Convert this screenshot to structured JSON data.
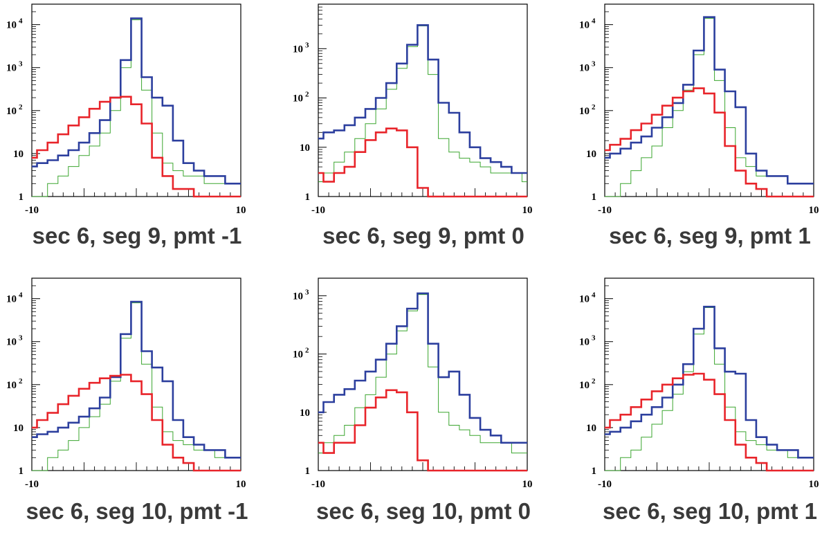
{
  "figure": {
    "x_tick_labels": [
      "-10",
      "10"
    ],
    "y_tick_labels": [
      {
        "base": "1",
        "exp": ""
      },
      {
        "base": "10",
        "exp": ""
      },
      {
        "base": "10",
        "exp": "2"
      },
      {
        "base": "10",
        "exp": "3"
      },
      {
        "base": "10",
        "exp": "4"
      }
    ],
    "colors": {
      "red": "#e8242a",
      "blue": "#2c3f9e",
      "green": "#3aa52e",
      "axis": "#000000"
    }
  },
  "chart_data": [
    {
      "type": "line",
      "title": "sec 6, seg 9, pmt -1",
      "x": [
        -10,
        -9,
        -8,
        -7,
        -6,
        -5,
        -4,
        -3,
        -2,
        -1,
        0,
        1,
        2,
        3,
        4,
        5,
        6,
        7,
        8,
        9,
        10
      ],
      "xlim": [
        -10,
        10
      ],
      "ylim": [
        1,
        30000
      ],
      "yscale": "log",
      "series": [
        {
          "color": "red",
          "values": [
            8,
            12,
            18,
            28,
            45,
            70,
            110,
            160,
            200,
            210,
            140,
            50,
            8,
            3,
            1.5,
            1.5,
            1,
            1,
            1,
            1,
            1
          ]
        },
        {
          "color": "blue",
          "values": [
            5,
            6,
            7,
            9,
            12,
            18,
            30,
            60,
            200,
            1500,
            14000,
            600,
            200,
            130,
            20,
            6,
            4,
            3,
            3,
            2,
            2
          ]
        },
        {
          "color": "green",
          "values": [
            1,
            1,
            2,
            3,
            5,
            9,
            15,
            30,
            100,
            1000,
            13000,
            300,
            30,
            6,
            4,
            3,
            3,
            2,
            2,
            2,
            2
          ]
        }
      ]
    },
    {
      "type": "line",
      "title": "sec 6, seg 9, pmt 0",
      "x": [
        -10,
        -9,
        -8,
        -7,
        -6,
        -5,
        -4,
        -3,
        -2,
        -1,
        0,
        1,
        2,
        3,
        4,
        5,
        6,
        7,
        8,
        9,
        10
      ],
      "xlim": [
        -10,
        10
      ],
      "ylim": [
        1,
        8000
      ],
      "yscale": "log",
      "series": [
        {
          "color": "red",
          "values": [
            3,
            2,
            3,
            4,
            8,
            14,
            20,
            24,
            22,
            10,
            1.5,
            1,
            1,
            1,
            1,
            1,
            1,
            1,
            1,
            1,
            1
          ]
        },
        {
          "color": "blue",
          "values": [
            15,
            20,
            22,
            28,
            40,
            60,
            100,
            200,
            500,
            1200,
            3000,
            600,
            80,
            50,
            20,
            10,
            6,
            5,
            4,
            3,
            3
          ]
        },
        {
          "color": "green",
          "values": [
            2,
            3,
            5,
            8,
            15,
            30,
            60,
            150,
            400,
            1100,
            2900,
            300,
            15,
            8,
            6,
            5,
            4,
            3,
            3,
            3,
            2
          ]
        }
      ]
    },
    {
      "type": "line",
      "title": "sec 6, seg 9, pmt 1",
      "x": [
        -10,
        -9,
        -8,
        -7,
        -6,
        -5,
        -4,
        -3,
        -2,
        -1,
        0,
        1,
        2,
        3,
        4,
        5,
        6,
        7,
        8,
        9,
        10
      ],
      "xlim": [
        -10,
        10
      ],
      "ylim": [
        1,
        30000
      ],
      "yscale": "log",
      "series": [
        {
          "color": "red",
          "values": [
            12,
            16,
            22,
            35,
            50,
            80,
            130,
            200,
            280,
            330,
            250,
            90,
            15,
            4,
            2,
            1.5,
            1,
            1,
            1,
            1,
            1
          ]
        },
        {
          "color": "blue",
          "values": [
            8,
            10,
            13,
            18,
            25,
            40,
            70,
            150,
            400,
            2500,
            15000,
            900,
            280,
            120,
            10,
            4,
            3,
            3,
            2,
            2,
            2
          ]
        },
        {
          "color": "green",
          "values": [
            1,
            1,
            2,
            4,
            8,
            15,
            40,
            100,
            300,
            2000,
            14000,
            500,
            40,
            8,
            5,
            3,
            3,
            3,
            2,
            2,
            2
          ]
        }
      ]
    },
    {
      "type": "line",
      "title": "sec 6, seg 10, pmt -1",
      "x": [
        -10,
        -9,
        -8,
        -7,
        -6,
        -5,
        -4,
        -3,
        -2,
        -1,
        0,
        1,
        2,
        3,
        4,
        5,
        6,
        7,
        8,
        9,
        10
      ],
      "xlim": [
        -10,
        10
      ],
      "ylim": [
        1,
        30000
      ],
      "yscale": "log",
      "series": [
        {
          "color": "red",
          "values": [
            10,
            15,
            22,
            35,
            55,
            80,
            110,
            140,
            160,
            170,
            120,
            60,
            15,
            4,
            2,
            1.5,
            1,
            1,
            1,
            1,
            1
          ]
        },
        {
          "color": "blue",
          "values": [
            6,
            7,
            8,
            10,
            13,
            18,
            28,
            50,
            150,
            1500,
            8500,
            600,
            250,
            120,
            15,
            6,
            4,
            3,
            3,
            2,
            2
          ]
        },
        {
          "color": "green",
          "values": [
            1,
            1,
            2,
            3,
            5,
            10,
            18,
            35,
            120,
            1200,
            8000,
            300,
            30,
            8,
            5,
            4,
            3,
            3,
            2,
            2,
            2
          ]
        }
      ]
    },
    {
      "type": "line",
      "title": "sec 6, seg 10, pmt 0",
      "x": [
        -10,
        -9,
        -8,
        -7,
        -6,
        -5,
        -4,
        -3,
        -2,
        -1,
        0,
        1,
        2,
        3,
        4,
        5,
        6,
        7,
        8,
        9,
        10
      ],
      "xlim": [
        -10,
        10
      ],
      "ylim": [
        1,
        2000
      ],
      "yscale": "log",
      "series": [
        {
          "color": "red",
          "values": [
            3,
            2,
            3,
            3,
            6,
            12,
            18,
            24,
            22,
            10,
            1.5,
            1,
            1,
            1,
            1,
            1,
            1,
            1,
            1,
            1,
            1
          ]
        },
        {
          "color": "blue",
          "values": [
            10,
            15,
            20,
            25,
            35,
            50,
            80,
            150,
            300,
            600,
            1100,
            150,
            40,
            50,
            20,
            8,
            5,
            4,
            3,
            3,
            3
          ]
        },
        {
          "color": "green",
          "values": [
            2,
            3,
            4,
            6,
            12,
            20,
            40,
            100,
            250,
            550,
            1050,
            60,
            10,
            6,
            5,
            4,
            3,
            3,
            3,
            2,
            2
          ]
        }
      ]
    },
    {
      "type": "line",
      "title": "sec 6, seg 10, pmt 1",
      "x": [
        -10,
        -9,
        -8,
        -7,
        -6,
        -5,
        -4,
        -3,
        -2,
        -1,
        0,
        1,
        2,
        3,
        4,
        5,
        6,
        7,
        8,
        9,
        10
      ],
      "xlim": [
        -10,
        10
      ],
      "ylim": [
        1,
        30000
      ],
      "yscale": "log",
      "series": [
        {
          "color": "red",
          "values": [
            10,
            15,
            20,
            30,
            45,
            70,
            100,
            140,
            170,
            180,
            130,
            60,
            15,
            4,
            2,
            1.5,
            1,
            1,
            1,
            1,
            1
          ]
        },
        {
          "color": "blue",
          "values": [
            7,
            8,
            10,
            14,
            20,
            30,
            50,
            100,
            300,
            2000,
            6500,
            700,
            200,
            180,
            15,
            6,
            4,
            3,
            3,
            2,
            2
          ]
        },
        {
          "color": "green",
          "values": [
            1,
            1,
            2,
            3,
            6,
            12,
            25,
            60,
            200,
            1500,
            6200,
            300,
            30,
            8,
            5,
            4,
            3,
            3,
            2,
            2,
            2
          ]
        }
      ]
    }
  ]
}
